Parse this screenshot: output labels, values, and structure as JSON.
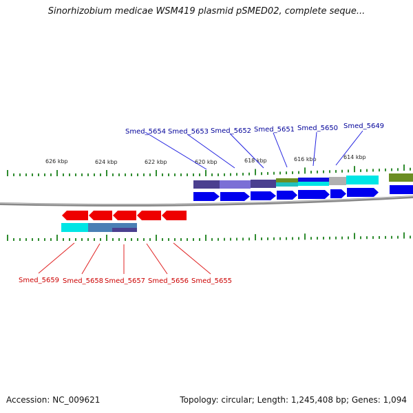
{
  "title": "Sinorhizobium medicae WSM419 plasmid pSMED02, complete seque...",
  "footer": {
    "accession": "Accession: NC_009621",
    "summary": "Topology: circular; Length: 1,245,408 bp; Genes: 1,094"
  },
  "colors": {
    "backbone": "#808080",
    "ticks": "#2e8b2e",
    "forward_gene": "#0000ff",
    "reverse_gene": "#ff0000",
    "forward_label": "#000099",
    "reverse_label": "#cc0000"
  },
  "ticks": [
    "626 kbp",
    "624 kbp",
    "622 kbp",
    "620 kbp",
    "618 kbp",
    "616 kbp",
    "614 kbp"
  ],
  "genes_top": [
    "Smed_5654",
    "Smed_5653",
    "Smed_5652",
    "Smed_5651",
    "Smed_5650",
    "Smed_5649"
  ],
  "genes_bottom": [
    "Smed_5659",
    "Smed_5658",
    "Smed_5657",
    "Smed_5656",
    "Smed_5655"
  ]
}
